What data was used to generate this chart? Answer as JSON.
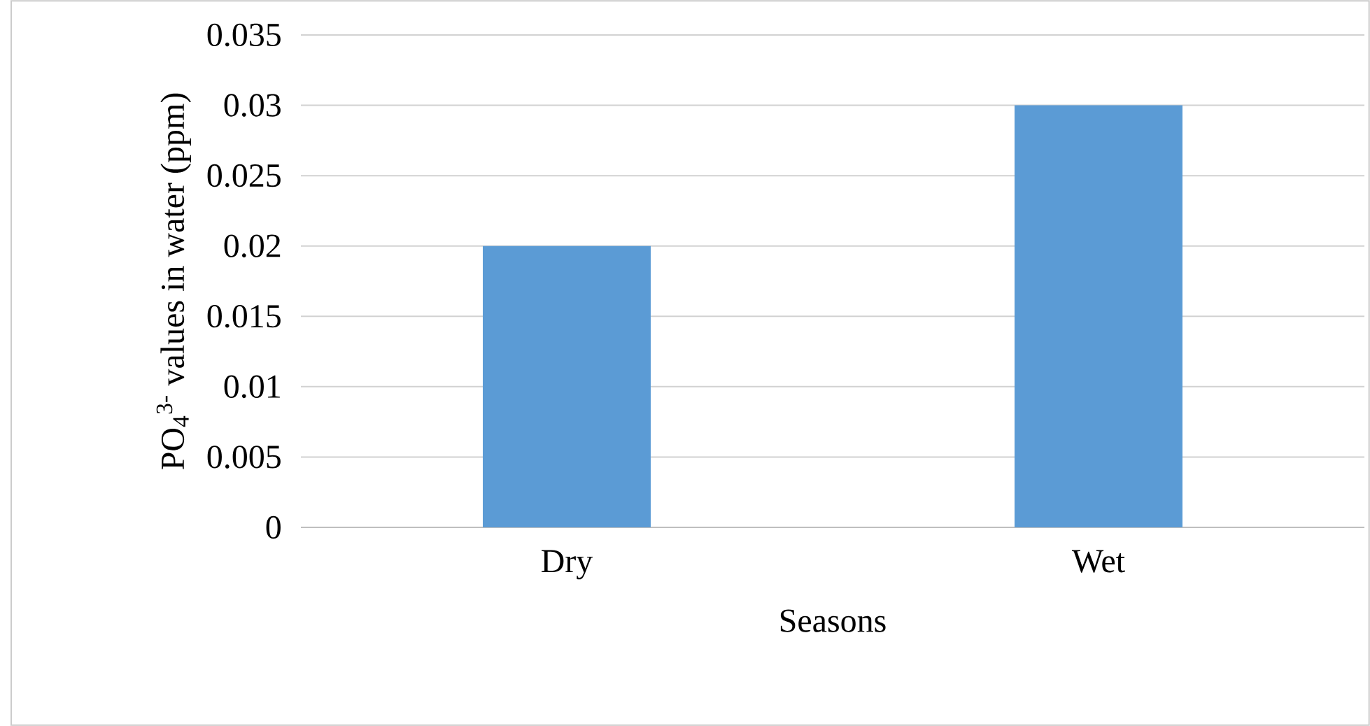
{
  "chart_data": {
    "type": "bar",
    "xlabel": "Seasons",
    "ylabel": "PO$_{4}$$^{3-}$ values in water (ppm)",
    "categories": [
      "Dry",
      "Wet"
    ],
    "values": [
      0.02,
      0.03
    ],
    "color": "#5b9bd5",
    "ylim": [
      0,
      0.035
    ],
    "yticks": [
      0,
      0.005,
      0.01,
      0.015,
      0.02,
      0.025,
      0.03,
      0.035
    ],
    "grid": "y"
  }
}
